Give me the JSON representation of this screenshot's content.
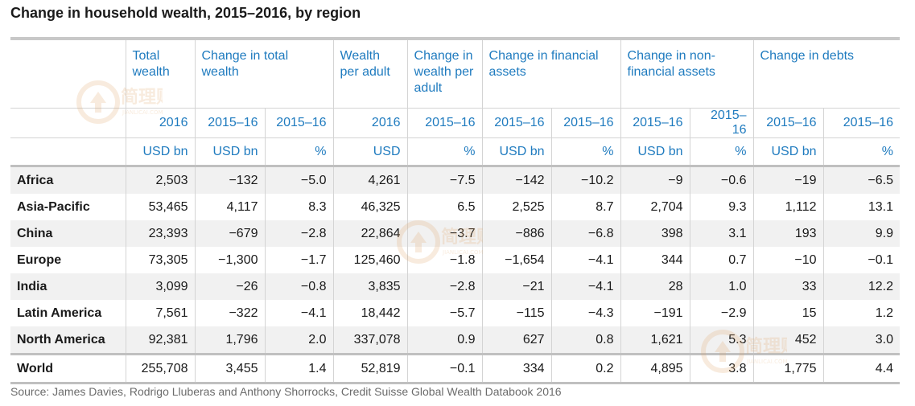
{
  "title": "Change in household wealth, 2015–2016, by region",
  "chart_data": {
    "type": "table",
    "column_groups": [
      {
        "label": "",
        "span": 1
      },
      {
        "label": "Total wealth",
        "span": 1
      },
      {
        "label": "Change in total wealth",
        "span": 2
      },
      {
        "label": "Wealth per adult",
        "span": 1
      },
      {
        "label": "Change in wealth per adult",
        "span": 1
      },
      {
        "label": "Change in financial assets",
        "span": 2
      },
      {
        "label": "Change in non-financial assets",
        "span": 2
      },
      {
        "label": "Change in debts",
        "span": 2
      }
    ],
    "years": [
      "",
      "2016",
      "2015–16",
      "2015–16",
      "2016",
      "2015–16",
      "2015–16",
      "2015–16",
      "2015–16",
      "2015–16",
      "2015–16",
      "2015–16"
    ],
    "units": [
      "",
      "USD bn",
      "USD bn",
      "%",
      "USD",
      "%",
      "USD bn",
      "%",
      "USD bn",
      "%",
      "USD bn",
      "%"
    ],
    "rows": [
      {
        "region": "Africa",
        "values": [
          "2,503",
          "−132",
          "−5.0",
          "4,261",
          "−7.5",
          "−142",
          "−10.2",
          "−9",
          "−0.6",
          "−19",
          "−6.5"
        ]
      },
      {
        "region": "Asia-Pacific",
        "values": [
          "53,465",
          "4,117",
          "8.3",
          "46,325",
          "6.5",
          "2,525",
          "8.7",
          "2,704",
          "9.3",
          "1,112",
          "13.1"
        ]
      },
      {
        "region": "China",
        "values": [
          "23,393",
          "−679",
          "−2.8",
          "22,864",
          "−3.7",
          "−886",
          "−6.8",
          "398",
          "3.1",
          "193",
          "9.9"
        ]
      },
      {
        "region": "Europe",
        "values": [
          "73,305",
          "−1,300",
          "−1.7",
          "125,460",
          "−1.8",
          "−1,654",
          "−4.1",
          "344",
          "0.7",
          "−10",
          "−0.1"
        ]
      },
      {
        "region": "India",
        "values": [
          "3,099",
          "−26",
          "−0.8",
          "3,835",
          "−2.8",
          "−21",
          "−4.1",
          "28",
          "1.0",
          "33",
          "12.2"
        ]
      },
      {
        "region": "Latin America",
        "values": [
          "7,561",
          "−322",
          "−4.1",
          "18,442",
          "−5.7",
          "−115",
          "−4.3",
          "−191",
          "−2.9",
          "15",
          "1.2"
        ]
      },
      {
        "region": "North America",
        "values": [
          "92,381",
          "1,796",
          "2.0",
          "337,078",
          "0.9",
          "627",
          "0.8",
          "1,621",
          "5.3",
          "452",
          "3.0"
        ]
      }
    ],
    "total_row": {
      "region": "World",
      "values": [
        "255,708",
        "3,455",
        "1.4",
        "52,819",
        "−0.1",
        "334",
        "0.2",
        "4,895",
        "3.8",
        "1,775",
        "4.4"
      ]
    }
  },
  "source": "Source: James Davies, Rodrigo Lluberas and Anthony Shorrocks, Credit Suisse Global Wealth Databook 2016",
  "watermark": {
    "text": "简理财",
    "subtext": "JIANLICAI.COM"
  },
  "colors": {
    "header": "#1f7bbf",
    "shade": "#f1f1f1",
    "rule": "#c0c0c0",
    "watermark": "#e0a96d"
  }
}
